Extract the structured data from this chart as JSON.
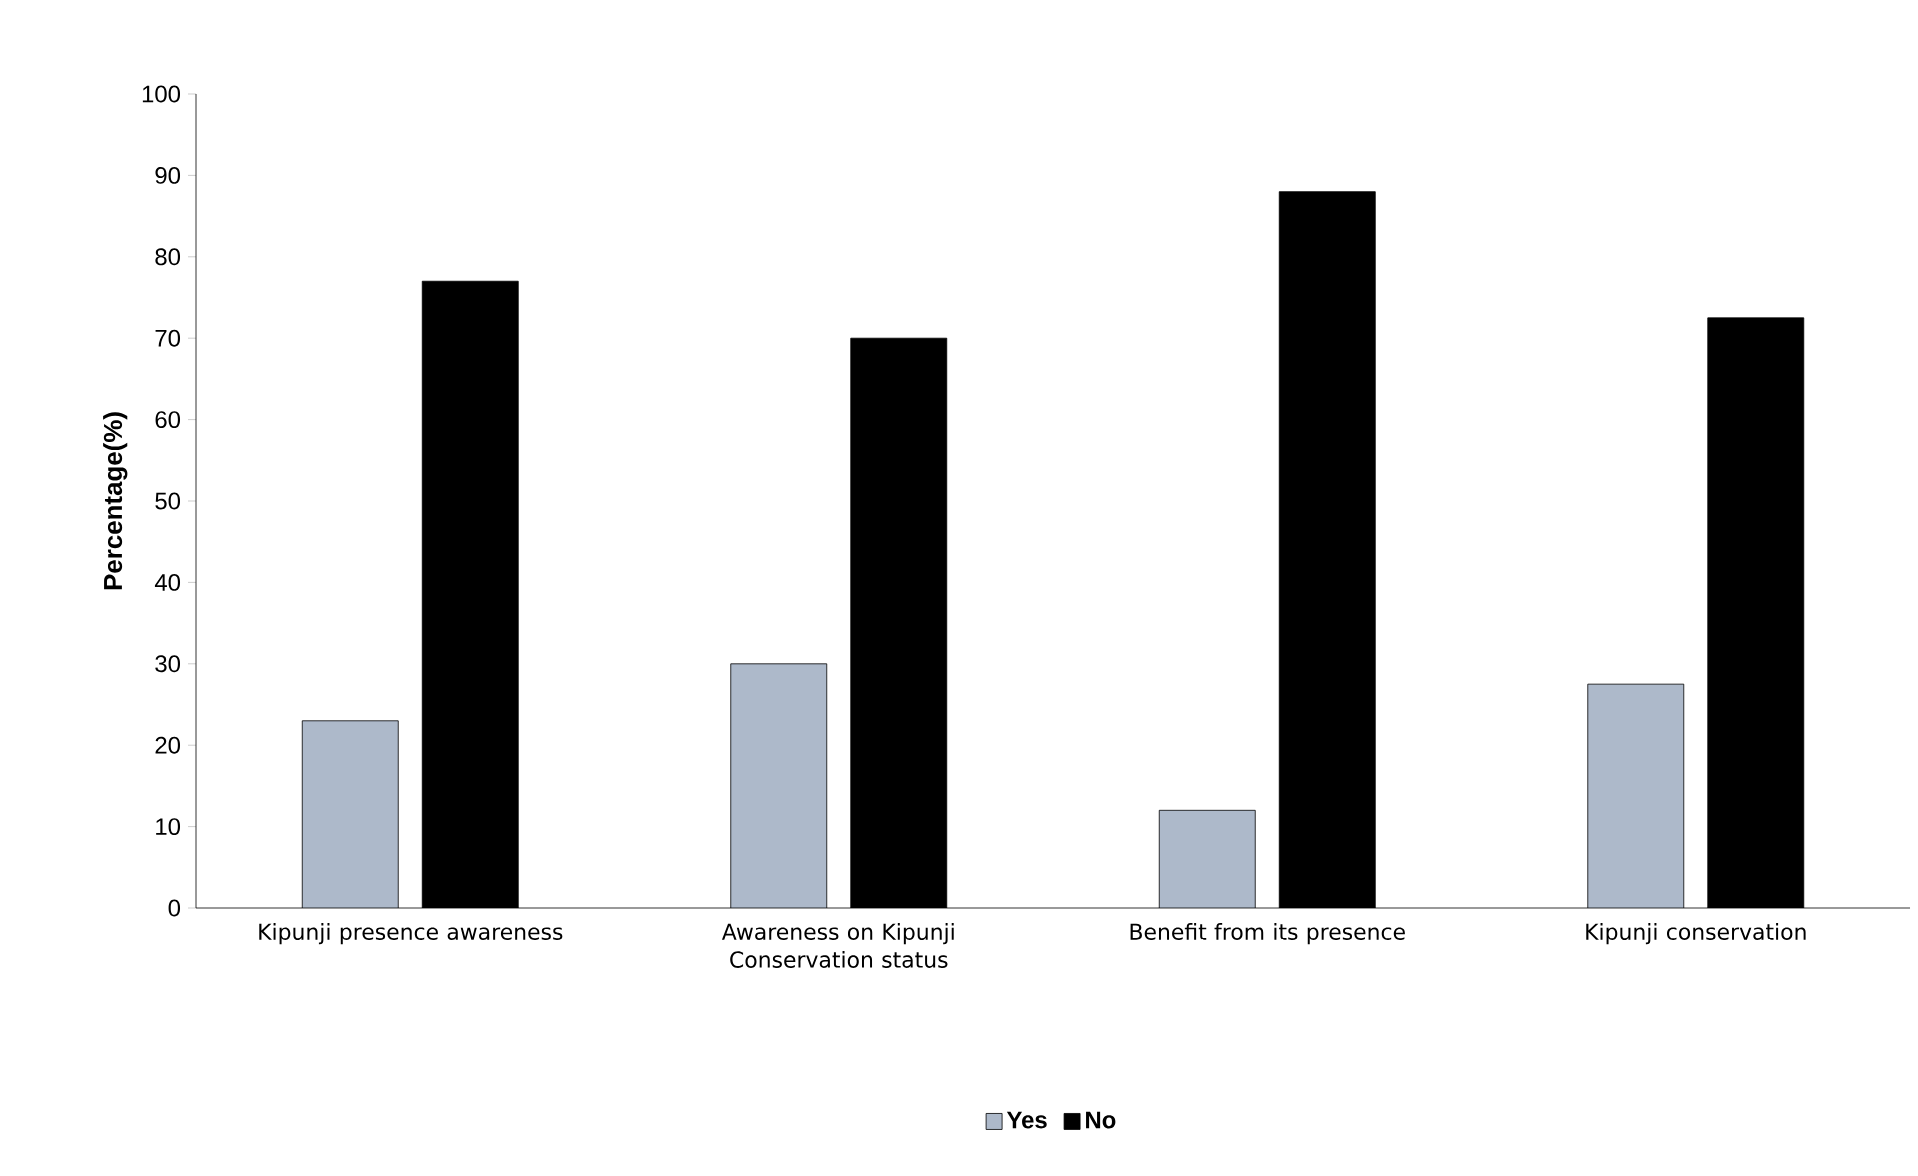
{
  "chart_data": {
    "type": "bar",
    "ylabel": "Percentage(%)",
    "categories": [
      "Kipunji presence awareness",
      "Awareness on Kipunji Conservation status",
      "Benefit from its presence",
      "Kipunji conservation"
    ],
    "series": [
      {
        "name": "Yes",
        "color": "#adb9ca",
        "values": [
          23,
          30,
          12,
          27.5
        ]
      },
      {
        "name": "No",
        "color": "#000000",
        "values": [
          77,
          70,
          88,
          72.5
        ]
      }
    ],
    "ylim": [
      0,
      100
    ],
    "yticks": [
      0,
      10,
      20,
      30,
      40,
      50,
      60,
      70,
      80,
      90,
      100
    ],
    "legend": "bottom"
  }
}
